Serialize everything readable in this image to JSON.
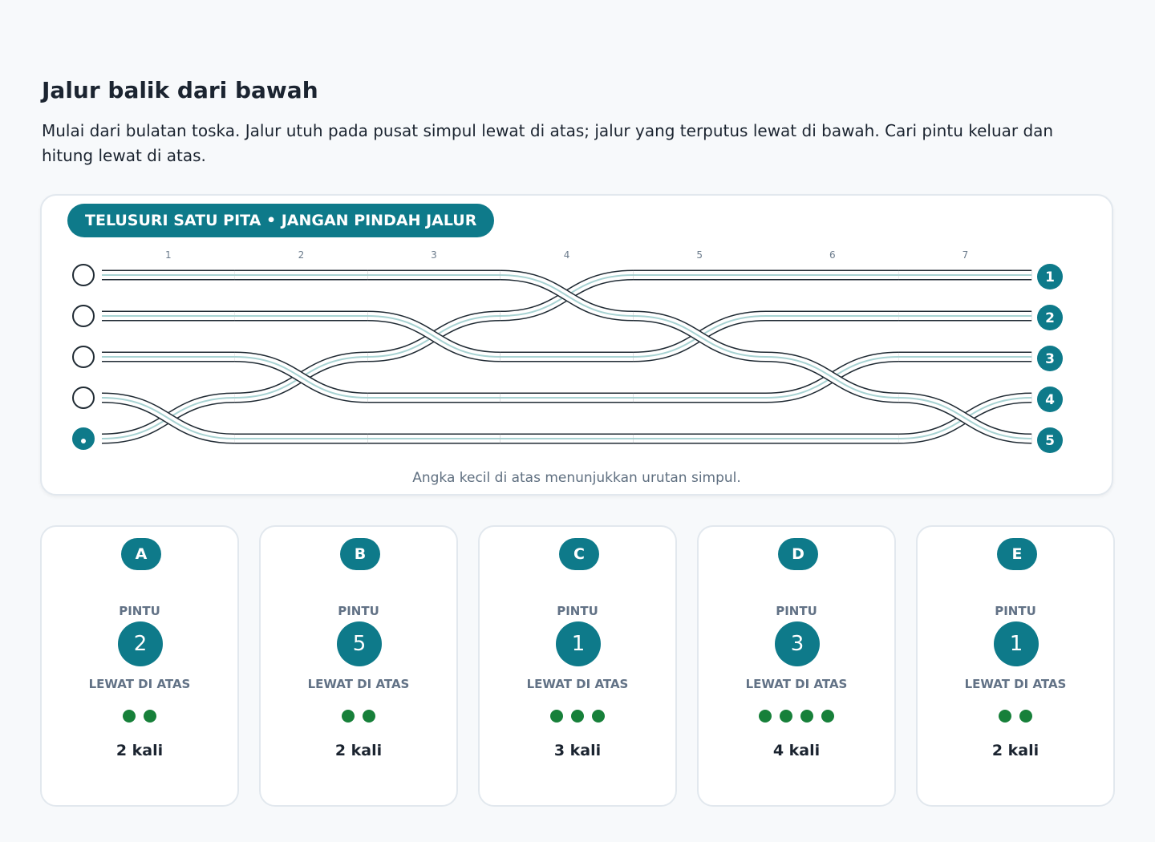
{
  "header": {
    "title": "Jalur balik dari bawah",
    "description": "Mulai dari bulatan toska. Jalur utuh pada pusat simpul lewat di atas; jalur yang terputus lewat di bawah. Cari pintu keluar dan hitung lewat di atas."
  },
  "panel": {
    "badge": "TELUSURI SATU PITA • JANGAN PINDAH JALUR",
    "columns": [
      "1",
      "2",
      "3",
      "4",
      "5",
      "6",
      "7"
    ],
    "exits": [
      "1",
      "2",
      "3",
      "4",
      "5"
    ],
    "note": "Angka kecil di atas menunjukkan urutan simpul."
  },
  "options": [
    {
      "letter": "A",
      "door_label": "PINTU",
      "door": "2",
      "over_label": "LEWAT DI ATAS",
      "over_count": 2,
      "over_text": "2 kali"
    },
    {
      "letter": "B",
      "door_label": "PINTU",
      "door": "5",
      "over_label": "LEWAT DI ATAS",
      "over_count": 2,
      "over_text": "2 kali"
    },
    {
      "letter": "C",
      "door_label": "PINTU",
      "door": "1",
      "over_label": "LEWAT DI ATAS",
      "over_count": 3,
      "over_text": "3 kali"
    },
    {
      "letter": "D",
      "door_label": "PINTU",
      "door": "3",
      "over_label": "LEWAT DI ATAS",
      "over_count": 4,
      "over_text": "4 kali"
    },
    {
      "letter": "E",
      "door_label": "PINTU",
      "door": "1",
      "over_label": "LEWAT DI ATAS",
      "over_count": 2,
      "over_text": "2 kali"
    }
  ]
}
